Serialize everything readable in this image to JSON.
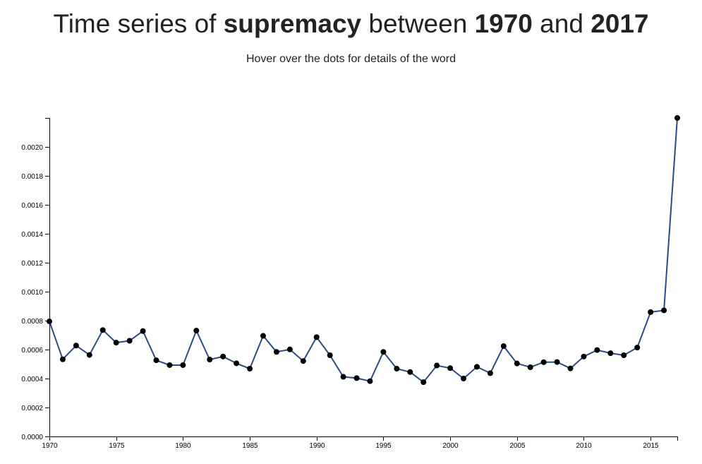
{
  "header": {
    "title_prefix": "Time series of ",
    "word": "supremacy",
    "title_mid1": " between ",
    "start_year": "1970",
    "title_mid2": " and ",
    "end_year": "2017",
    "subtitle": "Hover over the dots for details of the word"
  },
  "colors": {
    "line": "#2b4a8a",
    "dot": "#000000",
    "axis": "#000000"
  },
  "chart_data": {
    "type": "line",
    "title": "Time series of supremacy between 1970 and 2017",
    "subtitle": "Hover over the dots for details of the word",
    "xlabel": "",
    "ylabel": "",
    "xlim": [
      1970,
      2017
    ],
    "ylim": [
      0,
      0.0022
    ],
    "grid": false,
    "legend": "none",
    "x_ticks": [
      1970,
      1975,
      1980,
      1985,
      1990,
      1995,
      2000,
      2005,
      2010,
      2015
    ],
    "x_tick_labels": [
      "1970",
      "1975",
      "1980",
      "1985",
      "1990",
      "1995",
      "2000",
      "2005",
      "2010",
      "2015"
    ],
    "y_ticks": [
      0,
      0.0002,
      0.0004,
      0.0006,
      0.0008,
      0.001,
      0.0012,
      0.0014,
      0.0016,
      0.0018,
      0.002
    ],
    "y_tick_labels": [
      "0.0000",
      "0.0002",
      "0.0004",
      "0.0006",
      "0.0008",
      "0.0010",
      "0.0012",
      "0.0014",
      "0.0016",
      "0.0018",
      "0.0020"
    ],
    "x": [
      1970,
      1971,
      1972,
      1973,
      1974,
      1975,
      1976,
      1977,
      1978,
      1979,
      1980,
      1981,
      1982,
      1983,
      1984,
      1985,
      1986,
      1987,
      1988,
      1989,
      1990,
      1991,
      1992,
      1993,
      1994,
      1995,
      1996,
      1997,
      1998,
      1999,
      2000,
      2001,
      2002,
      2003,
      2004,
      2005,
      2006,
      2007,
      2008,
      2009,
      2010,
      2011,
      2012,
      2013,
      2014,
      2015,
      2016,
      2017
    ],
    "y": [
      0.000795,
      0.000533,
      0.000628,
      0.000563,
      0.000735,
      0.000648,
      0.000661,
      0.000728,
      0.000526,
      0.000493,
      0.000493,
      0.000731,
      0.000531,
      0.000552,
      0.000505,
      0.000468,
      0.000695,
      0.000584,
      0.000601,
      0.000521,
      0.000686,
      0.000561,
      0.000412,
      0.000403,
      0.000382,
      0.000584,
      0.000468,
      0.000445,
      0.000375,
      0.00049,
      0.000472,
      0.0004,
      0.000481,
      0.000437,
      0.000624,
      0.000504,
      0.000478,
      0.000513,
      0.000514,
      0.00047,
      0.000552,
      0.000597,
      0.000575,
      0.000561,
      0.000614,
      0.000859,
      0.000871,
      0.0022
    ]
  }
}
